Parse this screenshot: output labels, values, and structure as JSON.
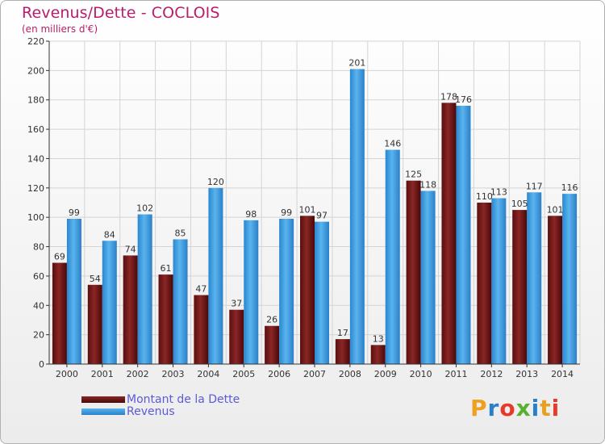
{
  "chart_data": {
    "type": "bar",
    "title": "Revenus/Dette - COCLOIS",
    "subtitle": "(en milliers d'€)",
    "categories": [
      "2000",
      "2001",
      "2002",
      "2003",
      "2004",
      "2005",
      "2006",
      "2007",
      "2008",
      "2009",
      "2010",
      "2011",
      "2012",
      "2013",
      "2014"
    ],
    "series": [
      {
        "name": "Montant de la Dette",
        "color": "#7a1a1a",
        "values": [
          69,
          54,
          74,
          61,
          47,
          37,
          26,
          101,
          17,
          13,
          125,
          178,
          110,
          105,
          101
        ]
      },
      {
        "name": "Revenus",
        "color": "#3a9be0",
        "values": [
          99,
          84,
          102,
          85,
          120,
          98,
          99,
          97,
          201,
          146,
          118,
          176,
          113,
          117,
          116
        ]
      }
    ],
    "ylim": [
      0,
      220
    ],
    "yticks": [
      0,
      20,
      40,
      60,
      80,
      100,
      120,
      140,
      160,
      180,
      200,
      220
    ],
    "grid": true,
    "legend_position": "bottom-left"
  },
  "legend": {
    "debt_label": "Montant de la Dette",
    "revenue_label": "Revenus"
  },
  "logo": {
    "letters": [
      "P",
      "r",
      "o",
      "x",
      "i",
      "t",
      "i"
    ],
    "colors": [
      "#f0a020",
      "#2a7fc8",
      "#e83a2a",
      "#58b030",
      "#2a7fc8",
      "#e8a020",
      "#e83a2a"
    ]
  }
}
